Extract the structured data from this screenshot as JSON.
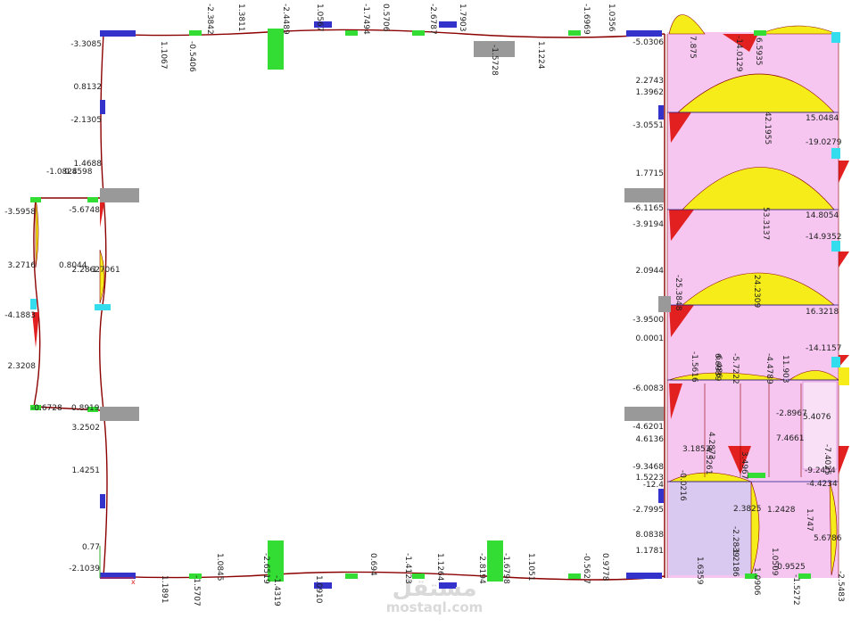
{
  "colors": {
    "member": "#8b0000",
    "support_blue": "#3333cc",
    "support_green": "#33dd33",
    "support_cyan": "#33ddee",
    "support_gray": "#999999",
    "diagram_pink": "#f6c6f0",
    "diagram_yellow": "#f5ec1a",
    "diagram_red": "#e32020",
    "diagram_lilac": "#d9c8f0"
  },
  "watermark": {
    "brand": "مستقل",
    "site": "mostaql.com"
  },
  "top_labels": [
    "-2.3842",
    "1.3811",
    "-2.4489",
    "1.0567",
    "-1.7494",
    "0.5706",
    "-2.6787",
    "1.7903",
    "-1.6969",
    "1.0356"
  ],
  "top_under_labels": [
    "1.1067",
    "-0.5406",
    "-1.5728",
    "1.1224"
  ],
  "bottom_labels": [
    "1.1891",
    "-1.5707",
    "1.0845",
    "-2.6519",
    "-1.4319",
    "1.0910",
    "0.694",
    "-1.4123",
    "1.1264",
    "-2.8194",
    "-1.6798",
    "1.1051",
    "-0.5627",
    "0.9778"
  ],
  "left_frame_labels": [
    "-3.3085",
    "0.8132",
    "-2.1305",
    "1.4688",
    "-5.6748",
    "2.2862",
    "-1.7061",
    "-0.6728",
    "0.8919",
    "3.2502",
    "1.4251",
    "0.77",
    "-2.1039"
  ],
  "far_left_labels": [
    "-1.0824",
    "0.8598",
    "-3.5958",
    "3.2716",
    "0.8044",
    "-4.1883",
    "2.3208"
  ],
  "right_col_labels": [
    "-5.0306",
    "2.2743",
    "1.3962",
    "-3.0551",
    "1.7715",
    "-6.1165",
    "-3.9194",
    "2.0944",
    "-3.9500",
    "0.0001",
    "-6.0083",
    "-4.6201",
    "4.6136",
    "-9.3468",
    "1.5223",
    "-12.4",
    "-2.7995",
    "8.0838",
    "1.1781"
  ],
  "wall_labels": [
    "7.875",
    "-14.0129",
    "6.5935",
    "15.0484",
    "-19.0279",
    "42.1955",
    "14.8054",
    "-14.9352",
    "53.3137",
    "-25.3848",
    "24.2309",
    "16.3218",
    "-14.1157",
    "-1.5616",
    "6.6939",
    "6.486",
    "-5.7222",
    "-4.4789",
    "11.903",
    "-2.8967",
    "5.4076",
    "3.1853",
    "4.2873",
    "4.5261",
    "3.4967",
    "7.4661",
    "-0.0216",
    "-7.4025",
    "-9.2454",
    "-4.4234",
    "2.3825",
    "-2.2839",
    "1.2428",
    "1.747",
    "-1.2186",
    "1.0509",
    "5.6786",
    "1.6359",
    "-0.9525",
    "1.0906",
    "-1.5272",
    "-2.5483"
  ]
}
